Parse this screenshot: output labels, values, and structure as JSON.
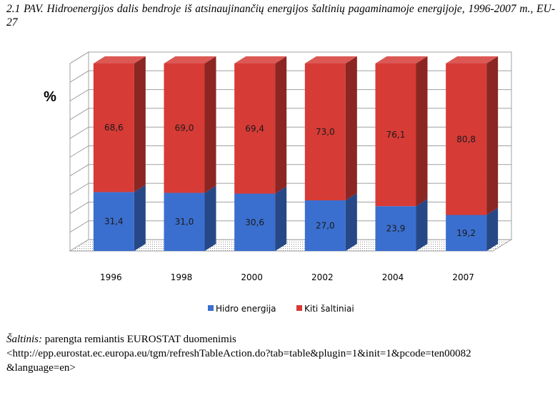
{
  "caption": "2.1 PAV. Hidroenergijos dalis bendroje iš atsinaujinančių energijos šaltinių pagaminamoje energijoje, 1996-2007 m., EU-27",
  "chart_data": {
    "type": "bar",
    "stacked": true,
    "three_d": true,
    "categories": [
      "1996",
      "1998",
      "2000",
      "2002",
      "2004",
      "2007"
    ],
    "series": [
      {
        "name": "Hidro energija",
        "values": [
          31.4,
          31.0,
          30.6,
          27.0,
          23.9,
          19.2
        ],
        "labels": [
          "31,4",
          "31,0",
          "30,6",
          "27,0",
          "23,9",
          "19,2"
        ],
        "color": "#3b6fcf"
      },
      {
        "name": "Kiti šaltiniai",
        "values": [
          68.6,
          69.0,
          69.4,
          73.0,
          76.1,
          80.8
        ],
        "labels": [
          "68,6",
          "69,0",
          "69,4",
          "73,0",
          "76,1",
          "80,8"
        ],
        "color": "#d63b36"
      }
    ],
    "ylabel": "%",
    "ylim": [
      0,
      100
    ],
    "grid": true,
    "legend_position": "bottom"
  },
  "source": {
    "label": "Šaltinis:",
    "text": " parengta remiantis EUROSTAT duomenimis",
    "url_line1": "<http://epp.eurostat.ec.europa.eu/tgm/refreshTableAction.do?tab=table&plugin=1&init=1&pcode=ten00082",
    "url_line2": "&language=en>"
  }
}
